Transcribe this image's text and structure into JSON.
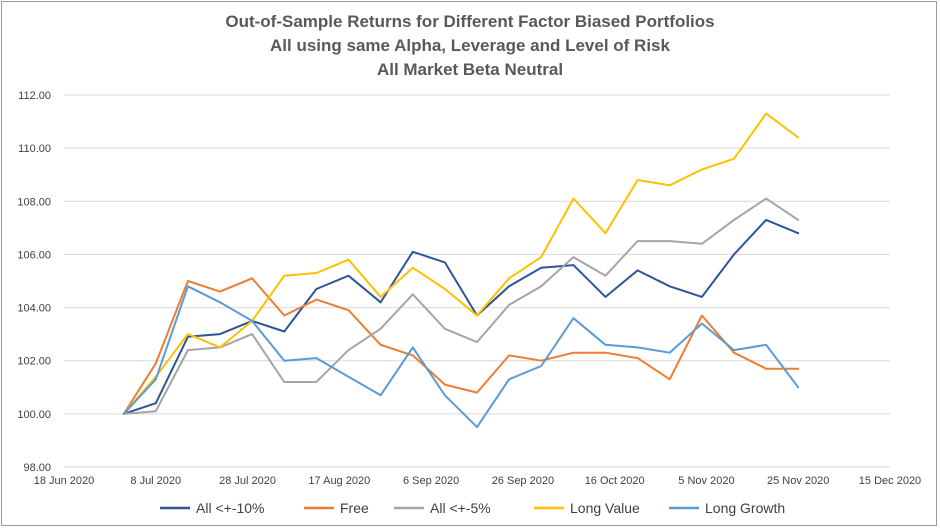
{
  "chart_data": {
    "type": "line",
    "title": [
      "Out-of-Sample Returns for Different Factor Biased Portfolios",
      "All using same Alpha, Leverage and Level of Risk",
      "All Market Beta Neutral"
    ],
    "xlabel": "",
    "ylabel": "",
    "x_axis": {
      "type": "date",
      "range": [
        "2020-06-18",
        "2020-12-15"
      ],
      "ticks": [
        "2020-06-18",
        "2020-07-08",
        "2020-07-28",
        "2020-08-17",
        "2020-09-06",
        "2020-09-26",
        "2020-10-16",
        "2020-11-05",
        "2020-11-25",
        "2020-12-15"
      ],
      "tick_labels": [
        "18 Jun 2020",
        "8 Jul 2020",
        "28 Jul 2020",
        "17 Aug 2020",
        "6 Sep 2020",
        "26 Sep 2020",
        "16 Oct 2020",
        "5 Nov 2020",
        "25 Nov 2020",
        "15 Dec 2020"
      ]
    },
    "y_axis": {
      "range": [
        98.0,
        112.0
      ],
      "ticks": [
        98,
        100,
        102,
        104,
        106,
        108,
        110,
        112
      ],
      "tick_labels": [
        "98.00",
        "100.00",
        "102.00",
        "104.00",
        "106.00",
        "108.00",
        "110.00",
        "112.00"
      ]
    },
    "grid": "horizontal",
    "legend_position": "bottom",
    "x": [
      "2020-07-01",
      "2020-07-08",
      "2020-07-15",
      "2020-07-22",
      "2020-07-29",
      "2020-08-05",
      "2020-08-12",
      "2020-08-19",
      "2020-08-26",
      "2020-09-02",
      "2020-09-09",
      "2020-09-16",
      "2020-09-23",
      "2020-09-30",
      "2020-10-07",
      "2020-10-14",
      "2020-10-21",
      "2020-10-28",
      "2020-11-04",
      "2020-11-11",
      "2020-11-18",
      "2020-11-25"
    ],
    "series": [
      {
        "name": "All <+-10%",
        "color": "#2f5597",
        "values": [
          100.0,
          100.4,
          102.9,
          103.0,
          103.5,
          103.1,
          104.7,
          105.2,
          104.2,
          106.1,
          105.7,
          103.7,
          104.8,
          105.5,
          105.6,
          104.4,
          105.4,
          104.8,
          104.4,
          106.0,
          107.3,
          106.8
        ]
      },
      {
        "name": "Free",
        "color": "#ed7d31",
        "values": [
          100.0,
          101.9,
          105.0,
          104.6,
          105.1,
          103.7,
          104.3,
          103.9,
          102.6,
          102.2,
          101.1,
          100.8,
          102.2,
          102.0,
          102.3,
          102.3,
          102.1,
          101.3,
          103.7,
          102.3,
          101.7,
          101.7
        ]
      },
      {
        "name": "All <+-5%",
        "color": "#a5a5a5",
        "values": [
          100.0,
          100.1,
          102.4,
          102.5,
          103.0,
          101.2,
          101.2,
          102.4,
          103.2,
          104.5,
          103.2,
          102.7,
          104.1,
          104.8,
          105.9,
          105.2,
          106.5,
          106.5,
          106.4,
          107.3,
          108.1,
          107.3
        ]
      },
      {
        "name": "Long Value",
        "color": "#ffc000",
        "values": [
          100.0,
          101.4,
          103.0,
          102.5,
          103.5,
          105.2,
          105.3,
          105.8,
          104.4,
          105.5,
          104.7,
          103.7,
          105.1,
          105.9,
          108.1,
          106.8,
          108.8,
          108.6,
          109.2,
          109.6,
          111.3,
          110.4
        ]
      },
      {
        "name": "Long Growth",
        "color": "#5b9bd5",
        "values": [
          100.0,
          101.3,
          104.8,
          104.2,
          103.5,
          102.0,
          102.1,
          101.4,
          100.7,
          102.5,
          100.7,
          99.5,
          101.3,
          101.8,
          103.6,
          102.6,
          102.5,
          102.3,
          103.4,
          102.4,
          102.6,
          101.0
        ]
      }
    ]
  }
}
